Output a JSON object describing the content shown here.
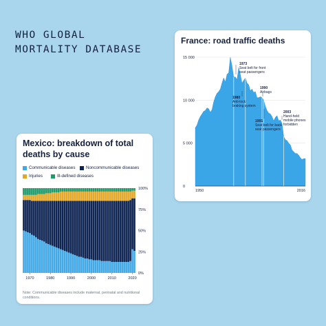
{
  "headline": {
    "line1": "WHO GLOBAL",
    "line2": "MORTALITY DATABASE"
  },
  "france": {
    "title": "France: road traffic deaths",
    "chart_data": {
      "type": "area",
      "x_range": [
        1950,
        2016
      ],
      "ylim": [
        0,
        15000
      ],
      "y_ticks": [
        0,
        5000,
        10000,
        15000
      ],
      "y_tick_labels": [
        "0",
        "5 000",
        "10 000",
        "15 000"
      ],
      "x_tick_labels": [
        "1950",
        "2016"
      ],
      "color": "#3aa6e8",
      "x": [
        1950,
        1951,
        1952,
        1953,
        1954,
        1955,
        1956,
        1957,
        1958,
        1959,
        1960,
        1961,
        1962,
        1963,
        1964,
        1965,
        1966,
        1967,
        1968,
        1969,
        1970,
        1971,
        1972,
        1973,
        1974,
        1975,
        1976,
        1977,
        1978,
        1979,
        1980,
        1981,
        1982,
        1983,
        1984,
        1985,
        1986,
        1987,
        1988,
        1989,
        1990,
        1991,
        1992,
        1993,
        1994,
        1995,
        1996,
        1997,
        1998,
        1999,
        2000,
        2001,
        2002,
        2003,
        2004,
        2005,
        2006,
        2007,
        2008,
        2009,
        2010,
        2011,
        2012,
        2013,
        2014,
        2015,
        2016
      ],
      "values": [
        6800,
        7100,
        7700,
        8100,
        8400,
        8700,
        8800,
        9100,
        9000,
        8600,
        8900,
        9800,
        10400,
        10800,
        11000,
        11300,
        12000,
        12600,
        12100,
        13000,
        13200,
        15000,
        14000,
        12700,
        12700,
        12400,
        13800,
        13000,
        12000,
        12300,
        12600,
        12000,
        11800,
        11100,
        11300,
        10900,
        11000,
        10300,
        10300,
        10400,
        10300,
        10000,
        9300,
        8800,
        8500,
        8400,
        8100,
        7600,
        8000,
        8200,
        7600,
        7700,
        7300,
        5800,
        5400,
        5300,
        5000,
        4800,
        4200,
        4000,
        3800,
        3800,
        3600,
        3300,
        3100,
        3200,
        3200
      ],
      "annotations": [
        {
          "year": "1973",
          "text": [
            "Seat belt for front",
            "seat passengers"
          ]
        },
        {
          "year": "1980",
          "text": [
            "Anti-lock",
            "braking system"
          ]
        },
        {
          "year": "1990",
          "text": [
            "Airbags"
          ]
        },
        {
          "year": "1991",
          "text": [
            "Seat belt for back",
            "seat passengers"
          ]
        },
        {
          "year": "2003",
          "text": [
            "Hand-held",
            "mobile phones",
            "forbidden"
          ]
        }
      ]
    }
  },
  "mexico": {
    "title": "Mexico: breakdown of total deaths by cause",
    "legend": [
      {
        "label": "Communicable diseases",
        "color": "#42a9e6"
      },
      {
        "label": "Noncommunicable diseases",
        "color": "#0e2452"
      },
      {
        "label": "Injuries",
        "color": "#e3a82a"
      },
      {
        "label": "Ill-defined diseases",
        "color": "#1f9a6b"
      }
    ],
    "note": "Note: Communicable diseases include maternal, perinatal and nutritional conditions.",
    "chart_data": {
      "type": "bar",
      "stacked": "percent",
      "ylim": [
        0,
        100
      ],
      "y_tick_labels": [
        "0%",
        "25%",
        "50%",
        "75%",
        "100%"
      ],
      "x_tick_labels": [
        "1970",
        "1980",
        "1990",
        "2000",
        "2010",
        "2020"
      ],
      "categories": [
        1967,
        1968,
        1969,
        1970,
        1971,
        1972,
        1973,
        1974,
        1975,
        1976,
        1977,
        1978,
        1979,
        1980,
        1981,
        1982,
        1983,
        1984,
        1985,
        1986,
        1987,
        1988,
        1989,
        1990,
        1991,
        1992,
        1993,
        1994,
        1995,
        1996,
        1997,
        1998,
        1999,
        2000,
        2001,
        2002,
        2003,
        2004,
        2005,
        2006,
        2007,
        2008,
        2009,
        2010,
        2011,
        2012,
        2013,
        2014,
        2015,
        2016,
        2017,
        2018,
        2019,
        2020,
        2021
      ],
      "series": [
        {
          "name": "Communicable diseases",
          "values": [
            50,
            49,
            48,
            47,
            45,
            44,
            42,
            40,
            39,
            38,
            37,
            35,
            34,
            33,
            32,
            31,
            30,
            29,
            28,
            27,
            26,
            25,
            24,
            23,
            22,
            21,
            20,
            19,
            19,
            18,
            17,
            17,
            16,
            16,
            15,
            15,
            15,
            15,
            14,
            14,
            14,
            14,
            14,
            13,
            13,
            13,
            13,
            13,
            13,
            13,
            13,
            13,
            14,
            28,
            26
          ]
        },
        {
          "name": "Noncommunicable diseases",
          "values": [
            36,
            37,
            38,
            39,
            40,
            41,
            43,
            45,
            46,
            47,
            48,
            50,
            51,
            52,
            53,
            54,
            55,
            56,
            57,
            58,
            59,
            60,
            61,
            62,
            63,
            64,
            65,
            66,
            66,
            67,
            68,
            68,
            69,
            69,
            70,
            70,
            70,
            70,
            71,
            71,
            71,
            71,
            71,
            72,
            72,
            72,
            72,
            72,
            72,
            72,
            72,
            72,
            72,
            60,
            62
          ]
        },
        {
          "name": "Injuries",
          "values": [
            6,
            6,
            6,
            6,
            7,
            7,
            7,
            8,
            8,
            8,
            8,
            9,
            9,
            9,
            10,
            10,
            10,
            10,
            11,
            11,
            11,
            11,
            11,
            11,
            11,
            11,
            11,
            11,
            11,
            11,
            11,
            11,
            11,
            11,
            11,
            11,
            11,
            11,
            11,
            11,
            11,
            11,
            11,
            11,
            11,
            11,
            11,
            11,
            11,
            11,
            11,
            11,
            10,
            9,
            9
          ]
        },
        {
          "name": "Ill-defined diseases",
          "values": [
            8,
            8,
            8,
            8,
            8,
            8,
            8,
            7,
            7,
            7,
            7,
            6,
            6,
            6,
            5,
            5,
            5,
            5,
            4,
            4,
            4,
            4,
            4,
            4,
            4,
            4,
            4,
            4,
            4,
            4,
            4,
            4,
            4,
            4,
            4,
            4,
            4,
            4,
            4,
            4,
            4,
            4,
            4,
            4,
            4,
            4,
            4,
            4,
            4,
            4,
            4,
            4,
            4,
            3,
            3
          ]
        }
      ]
    }
  }
}
